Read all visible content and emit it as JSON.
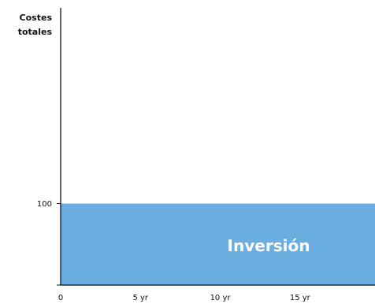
{
  "chart_data": {
    "type": "area",
    "ylabel": [
      "Costes",
      "totales"
    ],
    "x_ticks": [
      {
        "value": 0,
        "label": "0"
      },
      {
        "value": 5,
        "label": "5 yr"
      },
      {
        "value": 10,
        "label": "10 yr"
      },
      {
        "value": 15,
        "label": "15 yr"
      }
    ],
    "y_ticks": [
      {
        "value": 0,
        "label": ""
      },
      {
        "value": 100,
        "label": "100"
      }
    ],
    "xlim": [
      0,
      19.7
    ],
    "ylim": [
      0,
      340
    ],
    "grid": false,
    "series": [
      {
        "name": "Inversión",
        "color": "#6aaee0",
        "x": [
          0,
          19.7
        ],
        "y": [
          100,
          100
        ]
      }
    ]
  }
}
